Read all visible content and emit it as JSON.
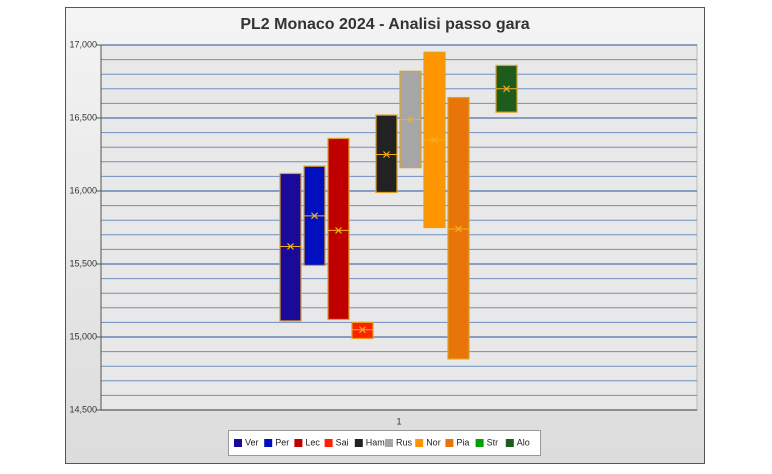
{
  "chart_data": {
    "type": "range",
    "title": "PL2 Monaco 2024 - Analisi passo gara",
    "categories": [
      "1"
    ],
    "ylim": [
      14500,
      17000
    ],
    "yticks": [
      {
        "value": 14500,
        "label": "14,500"
      },
      {
        "value": 15000,
        "label": "15,000"
      },
      {
        "value": 15500,
        "label": "15,500"
      },
      {
        "value": 16000,
        "label": "16,000"
      },
      {
        "value": 16500,
        "label": "16,500"
      },
      {
        "value": 17000,
        "label": "17,000"
      }
    ],
    "minor_grid": 100,
    "mean_marker_color": "#f0b020",
    "legend": "bottom",
    "series": [
      {
        "name": "Ver",
        "color": "#1a0a9a",
        "min": 15110,
        "mean": 15620,
        "max": 16120
      },
      {
        "name": "Per",
        "color": "#0010c0",
        "min": 15490,
        "mean": 15830,
        "max": 16170
      },
      {
        "name": "Lec",
        "color": "#c00000",
        "min": 15120,
        "mean": 15730,
        "max": 16360
      },
      {
        "name": "Sai",
        "color": "#ff2000",
        "min": 14990,
        "mean": 15050,
        "max": 15100
      },
      {
        "name": "Ham",
        "color": "#222222",
        "min": 15990,
        "mean": 16250,
        "max": 16520
      },
      {
        "name": "Rus",
        "color": "#a6a6a6",
        "min": 16160,
        "mean": 16490,
        "max": 16820
      },
      {
        "name": "Nor",
        "color": "#ff9500",
        "min": 15750,
        "mean": 16350,
        "max": 16950
      },
      {
        "name": "Pia",
        "color": "#e8740a",
        "min": 14850,
        "mean": 15740,
        "max": 16640
      },
      {
        "name": "Str",
        "color": "#00a000",
        "min": null,
        "mean": null,
        "max": null
      },
      {
        "name": "Alo",
        "color": "#1e5c1e",
        "min": 16540,
        "mean": 16700,
        "max": 16860
      }
    ]
  }
}
